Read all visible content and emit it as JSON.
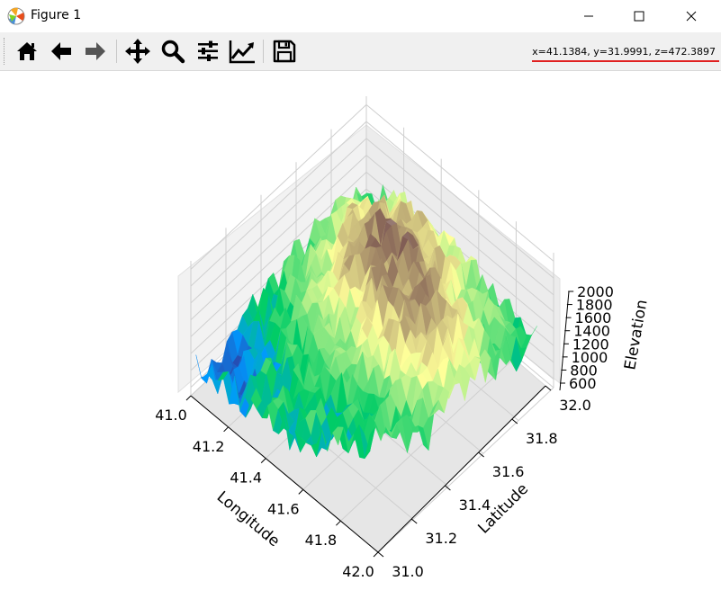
{
  "window": {
    "title": "Figure 1"
  },
  "toolbar": {
    "buttons": [
      {
        "name": "home-button",
        "icon": "home-icon"
      },
      {
        "name": "back-button",
        "icon": "arrow-left-icon"
      },
      {
        "name": "forward-button",
        "icon": "arrow-right-icon"
      },
      {
        "name": "pan-button",
        "icon": "move-icon"
      },
      {
        "name": "zoom-button",
        "icon": "magnifier-icon"
      },
      {
        "name": "configure-subplots-button",
        "icon": "sliders-icon"
      },
      {
        "name": "edit-axes-button",
        "icon": "line-chart-icon"
      },
      {
        "name": "save-button",
        "icon": "floppy-disk-icon"
      }
    ],
    "coords": "x=41.1384, y=31.9991, z=472.3897"
  },
  "colors": {
    "annotation_underline": "#e02020",
    "toolbar_bg": "#f0f0f0"
  },
  "chart_data": {
    "type": "surface3d",
    "colormap": "terrain",
    "x_axis": {
      "label": "Longitude",
      "ticks": [
        "41.0",
        "41.2",
        "41.4",
        "41.6",
        "41.8",
        "42.0"
      ],
      "range": [
        41.0,
        42.0
      ]
    },
    "y_axis": {
      "label": "Latitude",
      "ticks": [
        "31.0",
        "31.2",
        "31.4",
        "31.6",
        "31.8",
        "32.0"
      ],
      "range": [
        31.0,
        32.0
      ]
    },
    "z_axis": {
      "label": "Elevation",
      "ticks": [
        "600",
        "800",
        "1000",
        "1200",
        "1400",
        "1600",
        "1800",
        "2000"
      ],
      "range": [
        500,
        2100
      ]
    },
    "grid": true
  }
}
